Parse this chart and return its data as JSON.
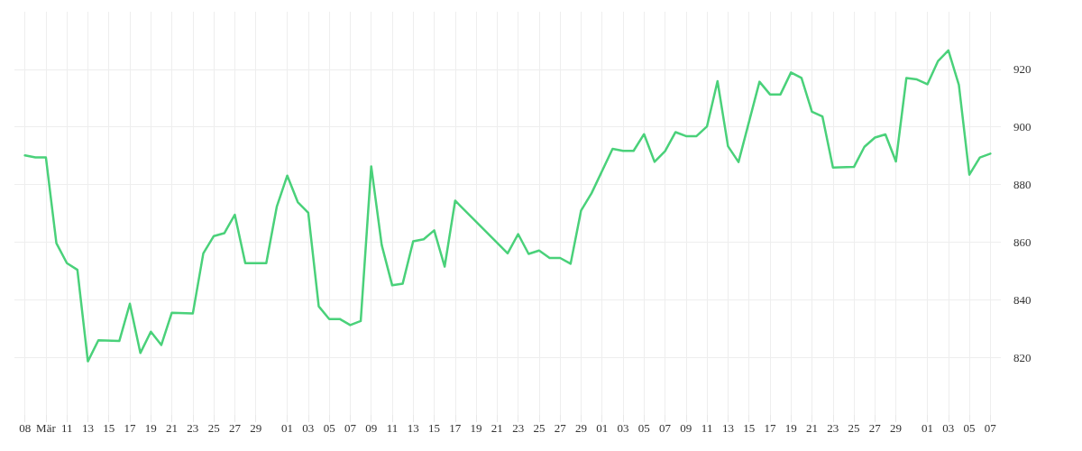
{
  "chart_data": {
    "type": "line",
    "x": [
      "--03-07",
      "--03-08",
      "--03-09",
      "--03-10",
      "--03-11",
      "--03-12",
      "--03-13",
      "--03-14",
      "--03-16",
      "--03-17",
      "--03-18",
      "--03-19",
      "--03-20",
      "--03-21",
      "--03-23",
      "--03-24",
      "--03-25",
      "--03-26",
      "--03-27",
      "--03-28",
      "--03-30",
      "--03-31",
      "--04-01",
      "--04-02",
      "--04-03",
      "--04-04",
      "--04-05",
      "--04-06",
      "--04-07",
      "--04-08",
      "--04-09",
      "--04-10",
      "--04-11",
      "--04-12",
      "--04-13",
      "--04-14",
      "--04-15",
      "--04-16",
      "--04-17",
      "--04-22",
      "--04-23",
      "--04-24",
      "--04-25",
      "--04-26",
      "--04-27",
      "--04-28",
      "--04-29",
      "--04-30",
      "--05-02",
      "--05-03",
      "--05-04",
      "--05-05",
      "--05-06",
      "--05-07",
      "--05-08",
      "--05-09",
      "--05-10",
      "--05-11",
      "--05-12",
      "--05-13",
      "--05-14",
      "--05-16",
      "--05-17",
      "--05-18",
      "--05-19",
      "--05-20",
      "--05-21",
      "--05-22",
      "--05-23",
      "--05-25",
      "--05-26",
      "--05-27",
      "--05-28",
      "--05-29",
      "--05-30",
      "--05-31",
      "--06-01",
      "--06-02",
      "--06-03",
      "--06-04",
      "--06-05",
      "--06-06",
      "--06-07"
    ],
    "series": [
      {
        "color": "#4ad17a",
        "values": [
          890.1,
          889.4,
          889.4,
          859.6,
          852.7,
          850.4,
          818.6,
          825.9,
          825.7,
          838.6,
          821.5,
          828.9,
          824.3,
          835.5,
          835.2,
          856.1,
          862.1,
          863.1,
          869.5,
          852.7,
          852.7,
          872.3,
          883.1,
          873.9,
          870.2,
          837.7,
          833.3,
          833.3,
          831.2,
          832.6,
          886.3,
          859.0,
          845.0,
          845.6,
          860.3,
          861.0,
          864.1,
          851.5,
          874.4,
          856.1,
          862.8,
          855.9,
          857.1,
          854.5,
          854.5,
          852.5,
          871.0,
          877.0,
          892.4,
          891.7,
          891.7,
          897.5,
          887.9,
          891.6,
          898.2,
          896.8,
          896.8,
          900.2,
          915.9,
          893.3,
          887.8,
          915.7,
          911.3,
          911.3,
          918.9,
          917.0,
          905.3,
          903.6,
          885.9,
          886.1,
          893.1,
          896.3,
          897.4,
          888.0,
          917.0,
          916.5,
          914.8,
          922.8,
          926.6,
          914.6,
          883.4,
          889.4,
          890.7
        ]
      }
    ],
    "xlim": [
      "--03-06",
      "--06-08"
    ],
    "xticks": [
      {
        "value": "--03-07",
        "label": "08"
      },
      {
        "value": "--03-09",
        "label": "Mär"
      },
      {
        "value": "--03-11",
        "label": "11"
      },
      {
        "value": "--03-13",
        "label": "13"
      },
      {
        "value": "--03-15",
        "label": "15"
      },
      {
        "value": "--03-17",
        "label": "17"
      },
      {
        "value": "--03-19",
        "label": "19"
      },
      {
        "value": "--03-21",
        "label": "21"
      },
      {
        "value": "--03-23",
        "label": "23"
      },
      {
        "value": "--03-25",
        "label": "25"
      },
      {
        "value": "--03-27",
        "label": "27"
      },
      {
        "value": "--03-29",
        "label": "29"
      },
      {
        "value": "--04-01",
        "label": "01"
      },
      {
        "value": "--04-03",
        "label": "03"
      },
      {
        "value": "--04-05",
        "label": "05"
      },
      {
        "value": "--04-07",
        "label": "07"
      },
      {
        "value": "--04-09",
        "label": "09"
      },
      {
        "value": "--04-11",
        "label": "11"
      },
      {
        "value": "--04-13",
        "label": "13"
      },
      {
        "value": "--04-15",
        "label": "15"
      },
      {
        "value": "--04-17",
        "label": "17"
      },
      {
        "value": "--04-19",
        "label": "19"
      },
      {
        "value": "--04-21",
        "label": "21"
      },
      {
        "value": "--04-23",
        "label": "23"
      },
      {
        "value": "--04-25",
        "label": "25"
      },
      {
        "value": "--04-27",
        "label": "27"
      },
      {
        "value": "--04-29",
        "label": "29"
      },
      {
        "value": "--05-01",
        "label": "01"
      },
      {
        "value": "--05-03",
        "label": "03"
      },
      {
        "value": "--05-05",
        "label": "05"
      },
      {
        "value": "--05-07",
        "label": "07"
      },
      {
        "value": "--05-09",
        "label": "09"
      },
      {
        "value": "--05-11",
        "label": "11"
      },
      {
        "value": "--05-13",
        "label": "13"
      },
      {
        "value": "--05-15",
        "label": "15"
      },
      {
        "value": "--05-17",
        "label": "17"
      },
      {
        "value": "--05-19",
        "label": "19"
      },
      {
        "value": "--05-21",
        "label": "21"
      },
      {
        "value": "--05-23",
        "label": "23"
      },
      {
        "value": "--05-25",
        "label": "25"
      },
      {
        "value": "--05-27",
        "label": "27"
      },
      {
        "value": "--05-29",
        "label": "29"
      },
      {
        "value": "--06-01",
        "label": "01"
      },
      {
        "value": "--06-03",
        "label": "03"
      },
      {
        "value": "--06-05",
        "label": "05"
      },
      {
        "value": "--06-07",
        "label": "07"
      }
    ],
    "ylim": [
      800,
      940
    ],
    "yticks": [
      820,
      840,
      860,
      880,
      900,
      920
    ],
    "grid": true,
    "marker": "none",
    "line_style": "solid"
  }
}
